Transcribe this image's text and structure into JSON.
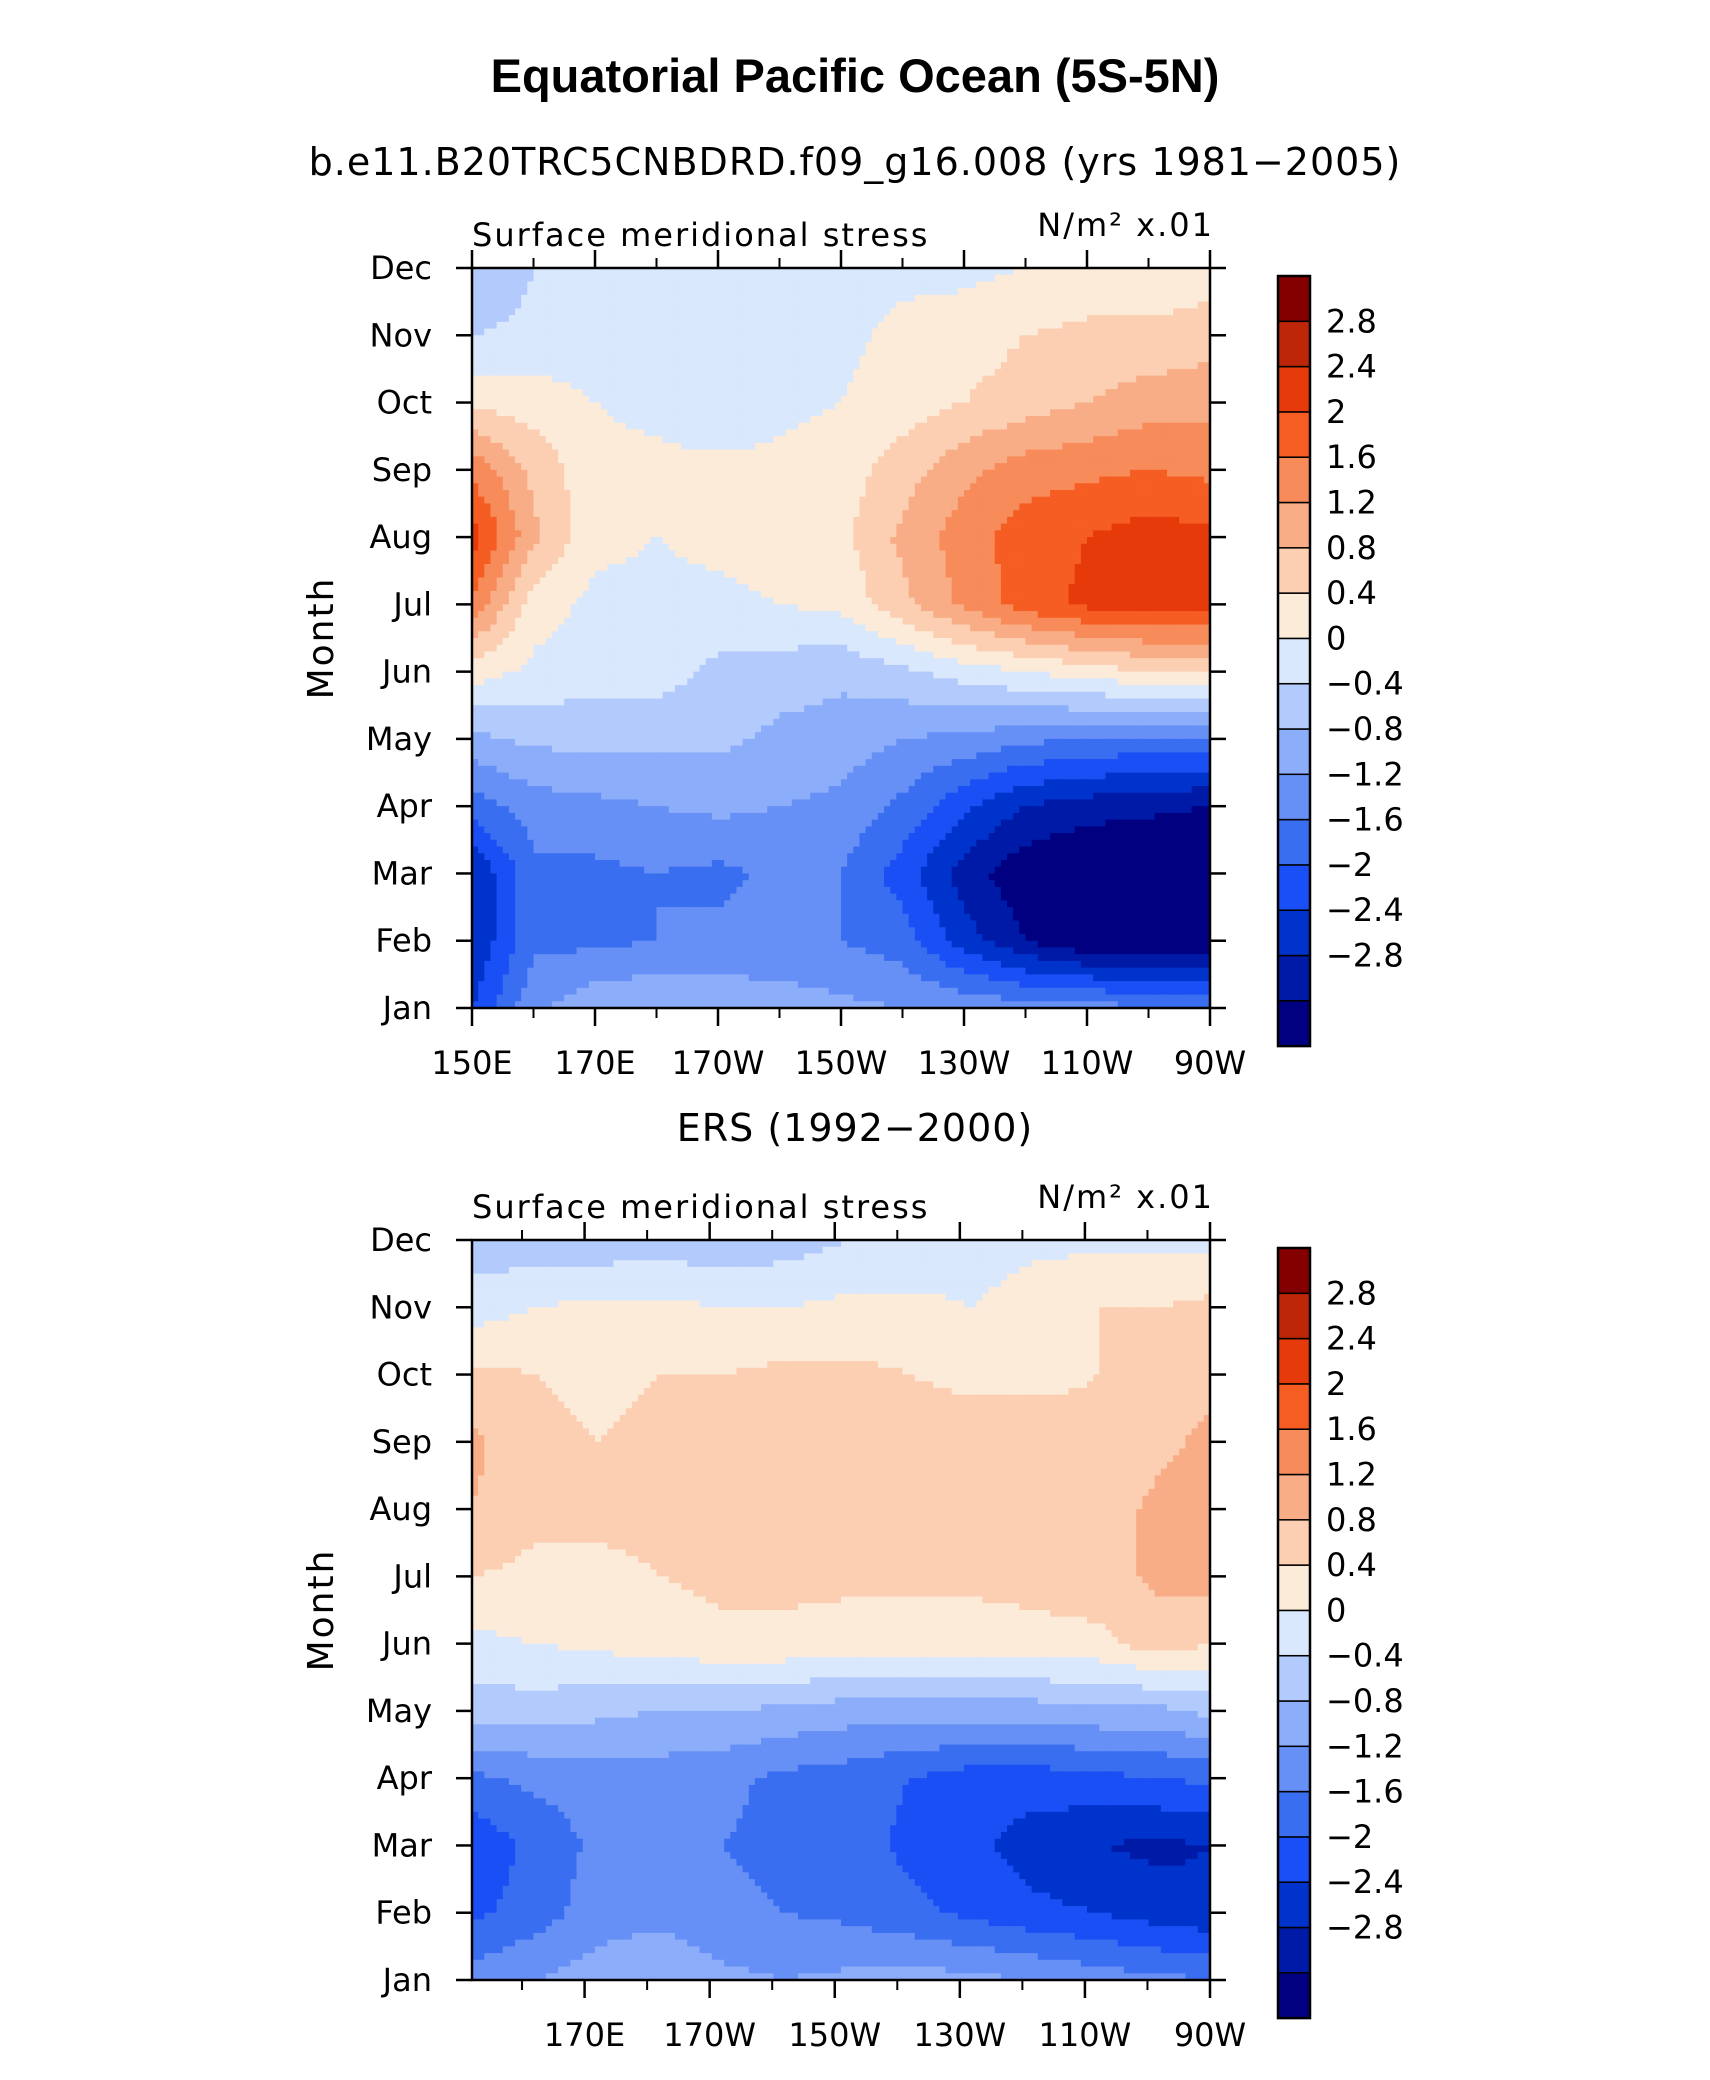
{
  "title": "Equatorial Pacific Ocean (5S-5N)",
  "subtitle": "b.e11.B20TRC5CNBDRD.f09_g16.008 (yrs 1981−2005)",
  "colors": {
    "levels": [
      "#000080",
      "#001aa8",
      "#0033cc",
      "#1a4ff5",
      "#3a6ef0",
      "#6690f5",
      "#8cadf9",
      "#b3cbfc",
      "#d9e8fc",
      "#fcebd9",
      "#fccfb3",
      "#f8ad86",
      "#f78b5a",
      "#f55d22",
      "#e63a0a",
      "#bd2608",
      "#840000"
    ]
  },
  "chart_data": [
    {
      "type": "heatmap",
      "title": "b.e11.B20TRC5CNBDRD.f09_g16.008 (yrs 1981−2005)",
      "left_label": "Surface meridional stress",
      "right_label": "N/m² x.01",
      "ylabel": "Month",
      "x_ticks": [
        "150E",
        "170E",
        "170W",
        "150W",
        "130W",
        "110W",
        "90W"
      ],
      "x_tick_values": [
        150,
        170,
        190,
        210,
        230,
        250,
        270
      ],
      "x_range": [
        150,
        270
      ],
      "y_ticks": [
        "Jan",
        "Feb",
        "Mar",
        "Apr",
        "May",
        "Jun",
        "Jul",
        "Aug",
        "Sep",
        "Oct",
        "Nov",
        "Dec"
      ],
      "colorbar_labels": [
        "2.8",
        "2.4",
        "2",
        "1.6",
        "1.2",
        "0.8",
        "0.4",
        "0",
        "−0.4",
        "−0.8",
        "−1.2",
        "−1.6",
        "−2",
        "−2.4",
        "−2.8"
      ],
      "colorbar_levels": [
        -3.2,
        -2.8,
        -2.4,
        -2.0,
        -1.6,
        -1.2,
        -0.8,
        -0.4,
        0,
        0.4,
        0.8,
        1.2,
        1.6,
        2.0,
        2.4,
        2.8,
        3.2
      ],
      "x": [
        150,
        160,
        170,
        180,
        190,
        200,
        210,
        220,
        230,
        240,
        250,
        260,
        270
      ],
      "values": [
        [
          -2.0,
          -0.9,
          -0.5,
          -0.4,
          -0.5,
          -0.6,
          -0.7,
          -0.8,
          -0.9,
          -1.0,
          -1.0,
          -1.2,
          -1.3
        ],
        [
          -2.4,
          -1.3,
          -1.3,
          -1.2,
          -1.1,
          -1.1,
          -1.2,
          -1.4,
          -2.2,
          -2.8,
          -3.2,
          -3.3,
          -3.3
        ],
        [
          -2.4,
          -1.3,
          -1.3,
          -1.2,
          -1.3,
          -1.1,
          -1.2,
          -1.8,
          -2.6,
          -3.1,
          -3.3,
          -3.3,
          -3.3
        ],
        [
          -1.4,
          -1.0,
          -0.9,
          -0.8,
          -0.7,
          -0.8,
          -0.9,
          -1.3,
          -1.9,
          -2.4,
          -2.6,
          -2.7,
          -2.8
        ],
        [
          -0.5,
          -0.3,
          -0.3,
          -0.3,
          -0.3,
          -0.5,
          -0.6,
          -0.8,
          -0.9,
          -1.1,
          -1.2,
          -1.3,
          -1.3
        ],
        [
          0.6,
          0.3,
          0.2,
          0.2,
          -0.1,
          -0.2,
          -0.3,
          -0.1,
          0.2,
          0.4,
          0.6,
          0.8,
          0.8
        ],
        [
          1.9,
          0.6,
          0.3,
          0.3,
          0.3,
          0.4,
          0.5,
          1.1,
          1.7,
          2.2,
          2.5,
          2.6,
          2.6
        ],
        [
          2.6,
          1.3,
          0.5,
          0.4,
          0.5,
          0.6,
          0.7,
          1.3,
          1.8,
          2.2,
          2.4,
          2.6,
          2.5
        ],
        [
          1.9,
          1.1,
          0.5,
          0.5,
          0.5,
          0.5,
          0.6,
          1.0,
          1.5,
          1.8,
          1.9,
          2.0,
          1.9
        ],
        [
          0.7,
          0.6,
          0.4,
          0.3,
          0.1,
          0.3,
          0.4,
          0.6,
          0.8,
          1.0,
          1.2,
          1.4,
          1.5
        ],
        [
          0.0,
          0.1,
          0.2,
          0.2,
          0.3,
          0.3,
          0.3,
          0.5,
          0.6,
          0.8,
          0.9,
          0.9,
          1.0
        ],
        [
          -0.4,
          0.0,
          0.2,
          0.2,
          0.1,
          0.2,
          0.2,
          0.3,
          0.3,
          0.4,
          0.5,
          0.5,
          0.6
        ]
      ]
    },
    {
      "type": "heatmap",
      "title": "ERS (1992−2000)",
      "left_label": "Surface meridional stress",
      "right_label": "N/m² x.01",
      "ylabel": "Month",
      "x_ticks": [
        "170E",
        "170W",
        "150W",
        "130W",
        "110W",
        "90W"
      ],
      "x_tick_values": [
        170,
        190,
        210,
        230,
        250,
        270
      ],
      "x_range": [
        152,
        270
      ],
      "y_ticks": [
        "Jan",
        "Feb",
        "Mar",
        "Apr",
        "May",
        "Jun",
        "Jul",
        "Aug",
        "Sep",
        "Oct",
        "Nov",
        "Dec"
      ],
      "colorbar_labels": [
        "2.8",
        "2.4",
        "2",
        "1.6",
        "1.2",
        "0.8",
        "0.4",
        "0",
        "−0.4",
        "−0.8",
        "−1.2",
        "−1.6",
        "−2",
        "−2.4",
        "−2.8"
      ],
      "colorbar_levels": [
        -3.2,
        -2.8,
        -2.4,
        -2.0,
        -1.6,
        -1.2,
        -0.8,
        -0.4,
        0,
        0.4,
        0.8,
        1.2,
        1.6,
        2.0,
        2.4,
        2.8,
        3.2
      ],
      "x": [
        152,
        162,
        172,
        182,
        192,
        202,
        212,
        222,
        232,
        242,
        252,
        262,
        270
      ],
      "values": [
        [
          -1.0,
          -0.8,
          -0.6,
          -0.5,
          -0.7,
          -0.8,
          -0.7,
          -0.6,
          -0.7,
          -0.8,
          -1.0,
          -1.1,
          -1.2
        ],
        [
          -1.7,
          -1.4,
          -1.0,
          -0.9,
          -1.1,
          -1.2,
          -1.3,
          -1.5,
          -1.7,
          -1.9,
          -2.0,
          -2.2,
          -2.3
        ],
        [
          -1.9,
          -1.5,
          -1.1,
          -1.0,
          -1.2,
          -1.3,
          -1.4,
          -1.7,
          -1.9,
          -2.2,
          -2.4,
          -2.5,
          -2.4
        ],
        [
          -1.3,
          -1.1,
          -1.0,
          -1.0,
          -1.1,
          -1.3,
          -1.4,
          -1.6,
          -1.8,
          -1.8,
          -1.7,
          -1.6,
          -1.5
        ],
        [
          -0.2,
          -0.2,
          -0.3,
          -0.4,
          -0.4,
          -0.5,
          -0.6,
          -0.6,
          -0.6,
          -0.6,
          -0.5,
          -0.5,
          -0.3
        ],
        [
          0.3,
          0.4,
          0.5,
          0.6,
          0.7,
          0.7,
          0.6,
          0.6,
          0.6,
          0.7,
          0.7,
          1.0,
          0.8
        ],
        [
          0.8,
          0.7,
          0.7,
          0.8,
          0.9,
          0.9,
          0.9,
          0.9,
          0.9,
          0.9,
          1.0,
          1.3,
          1.4
        ],
        [
          1.2,
          0.9,
          0.9,
          0.9,
          1.0,
          1.1,
          1.1,
          1.1,
          1.0,
          1.0,
          1.0,
          1.3,
          1.4
        ],
        [
          1.3,
          0.9,
          0.8,
          0.9,
          1.0,
          1.1,
          1.0,
          1.0,
          1.0,
          1.0,
          0.9,
          1.1,
          1.3
        ],
        [
          0.9,
          0.8,
          0.7,
          0.8,
          0.8,
          0.9,
          0.9,
          0.8,
          0.7,
          0.7,
          0.8,
          0.9,
          1.1
        ],
        [
          0.2,
          0.4,
          0.5,
          0.5,
          0.4,
          0.4,
          0.5,
          0.5,
          0.4,
          0.6,
          0.8,
          0.8,
          0.9
        ],
        [
          -0.2,
          -0.3,
          -0.3,
          -0.2,
          -0.3,
          -0.2,
          0.0,
          0.1,
          0.2,
          0.3,
          0.3,
          0.3,
          0.3
        ]
      ]
    }
  ]
}
